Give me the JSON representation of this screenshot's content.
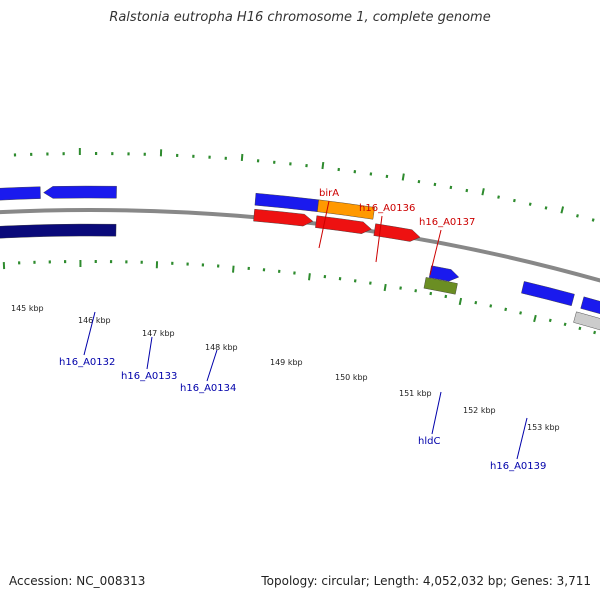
{
  "title": "Ralstonia eutropha H16 chromosome 1, complete genome",
  "footer": {
    "accession": "Accession: NC_008313",
    "summary": "Topology: circular; Length: 4,052,032 bp; Genes: 3,711"
  },
  "colors": {
    "backbone": "#888888",
    "tick": "#2e8b2e",
    "cds": "#1a1aee",
    "cds_dark": "#0a0a7a",
    "cds_grey": "#888888",
    "cds_lightgrey": "#cccccc",
    "trna_red": "#ee1111",
    "orange": "#ff9900",
    "olive": "#6b8e23",
    "label_red": "#cc0000",
    "label_blue": "#0000aa"
  },
  "kbp_labels": [
    "145 kbp",
    "146 kbp",
    "147 kbp",
    "148 kbp",
    "149 kbp",
    "150 kbp",
    "151 kbp",
    "152 kbp",
    "153 kbp"
  ],
  "gene_labels": [
    {
      "text": "birA",
      "color": "red"
    },
    {
      "text": "h16_A0136",
      "color": "red"
    },
    {
      "text": "h16_A0137",
      "color": "red"
    },
    {
      "text": "h16_A0132",
      "color": "blue"
    },
    {
      "text": "h16_A0133",
      "color": "blue"
    },
    {
      "text": "h16_A0134",
      "color": "blue"
    },
    {
      "text": "hldC",
      "color": "blue"
    },
    {
      "text": "h16_A0139",
      "color": "blue"
    }
  ]
}
